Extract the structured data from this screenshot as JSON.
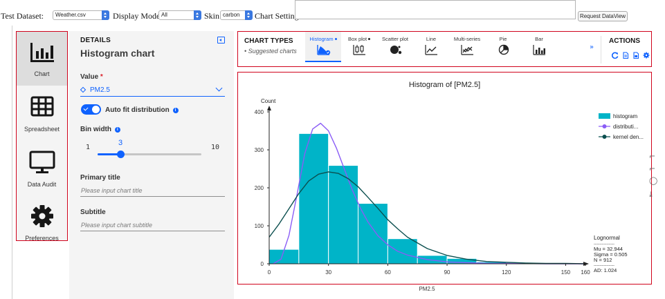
{
  "toolbar": {
    "dataset_label": "Test Dataset:",
    "dataset_value": "Weather.csv",
    "display_mode_label": "Display Mode:",
    "display_mode_value": "All",
    "skin_label": "Skin:",
    "skin_value": "carbon",
    "chart_setting_label": "Chart Setting:",
    "chart_setting_value": "",
    "request_button": "Request DataView"
  },
  "nav": {
    "items": [
      {
        "label": "Chart",
        "icon": "bar-chart-icon",
        "active": true
      },
      {
        "label": "Spreadsheet",
        "icon": "table-icon",
        "active": false
      },
      {
        "label": "Data Audit",
        "icon": "monitor-icon",
        "active": false
      },
      {
        "label": "Preferences",
        "icon": "gear-icon",
        "active": false
      }
    ]
  },
  "details": {
    "heading": "DETAILS",
    "title": "Histogram chart",
    "value_label": "Value",
    "value_required_marker": "*",
    "value_selected": "PM2.5",
    "auto_fit_label": "Auto fit distribution",
    "auto_fit_on": true,
    "bin_width_label": "Bin width",
    "bin_width_min": "1",
    "bin_width_value": "3",
    "bin_width_max": "10",
    "primary_title_label": "Primary title",
    "primary_title_placeholder": "Please input chart title",
    "subtitle_label": "Subtitle",
    "subtitle_placeholder": "Please input chart subtitle"
  },
  "chart_types": {
    "heading": "CHART TYPES",
    "subheading": "• Suggested charts",
    "tabs": [
      {
        "label": "Histogram",
        "suggested": true,
        "active": true,
        "icon": "histogram-icon"
      },
      {
        "label": "Box plot",
        "suggested": true,
        "active": false,
        "icon": "box-plot-icon"
      },
      {
        "label": "Scatter plot",
        "suggested": false,
        "active": false,
        "icon": "scatter-plot-icon"
      },
      {
        "label": "Line",
        "suggested": false,
        "active": false,
        "icon": "line-chart-icon"
      },
      {
        "label": "Multi-series",
        "suggested": false,
        "active": false,
        "icon": "multi-series-icon"
      },
      {
        "label": "Pie",
        "suggested": false,
        "active": false,
        "icon": "pie-chart-icon"
      },
      {
        "label": "Bar",
        "suggested": false,
        "active": false,
        "icon": "bar-chart-icon"
      }
    ],
    "more_icon": "double-chevron-down-icon"
  },
  "actions": {
    "heading": "ACTIONS",
    "icons": [
      "refresh-icon",
      "document-icon",
      "image-export-icon",
      "gear-icon"
    ]
  },
  "side_tools": [
    "crop-icon",
    "crop-icon",
    "reset-zoom-icon",
    "download-icon"
  ],
  "colors": {
    "accent": "#0f62fe",
    "highlight_border": "#d0021b",
    "histogram_bar": "#00b4c8",
    "distribution_line": "#8a5cf6",
    "kernel_density_line": "#0b4f4f"
  },
  "chart_data": {
    "type": "bar",
    "title": "Histogram of [PM2.5]",
    "xlabel": "PM2.5",
    "ylabel": "Count",
    "xlim": [
      0,
      160
    ],
    "ylim": [
      0,
      400
    ],
    "x_ticks": [
      0,
      30,
      60,
      90,
      120,
      150,
      160
    ],
    "y_ticks": [
      0,
      100,
      200,
      300,
      400
    ],
    "bins": [
      {
        "x0": 0,
        "x1": 15,
        "count": 38
      },
      {
        "x0": 15,
        "x1": 30,
        "count": 343
      },
      {
        "x0": 30,
        "x1": 45,
        "count": 259
      },
      {
        "x0": 45,
        "x1": 60,
        "count": 159
      },
      {
        "x0": 60,
        "x1": 75,
        "count": 66
      },
      {
        "x0": 75,
        "x1": 90,
        "count": 22
      },
      {
        "x0": 90,
        "x1": 105,
        "count": 14
      },
      {
        "x0": 105,
        "x1": 120,
        "count": 5
      },
      {
        "x0": 120,
        "x1": 135,
        "count": 3
      },
      {
        "x0": 135,
        "x1": 150,
        "count": 2
      },
      {
        "x0": 150,
        "x1": 160,
        "count": 1
      }
    ],
    "series": [
      {
        "name": "histogram",
        "kind": "bars"
      },
      {
        "name": "distributi...",
        "kind": "line",
        "x": [
          2,
          6,
          10,
          14,
          18,
          22,
          26,
          30,
          34,
          38,
          42,
          46,
          50,
          55,
          60,
          65,
          70,
          80,
          90,
          100,
          110,
          120,
          140,
          160
        ],
        "y": [
          0,
          12,
          75,
          180,
          290,
          355,
          370,
          350,
          305,
          250,
          195,
          148,
          110,
          74,
          50,
          33,
          23,
          11,
          5,
          3,
          1,
          1,
          0,
          0
        ]
      },
      {
        "name": "kernel den...",
        "kind": "line",
        "x": [
          0,
          5,
          10,
          15,
          20,
          25,
          30,
          35,
          40,
          45,
          50,
          55,
          60,
          65,
          70,
          80,
          90,
          100,
          110,
          120,
          130,
          140,
          150,
          160
        ],
        "y": [
          70,
          105,
          145,
          185,
          218,
          236,
          242,
          238,
          224,
          203,
          175,
          146,
          116,
          92,
          70,
          40,
          22,
          12,
          6,
          4,
          2,
          1,
          1,
          0
        ]
      }
    ],
    "legend_position": "top-right",
    "annotation": {
      "heading": "Lognormal",
      "separator": "------------------",
      "lines": [
        "Mu = 32.944",
        "Sigma = 0.505",
        "N = 912"
      ],
      "separator2": "------------------",
      "footer": "AD: 1.024"
    }
  }
}
